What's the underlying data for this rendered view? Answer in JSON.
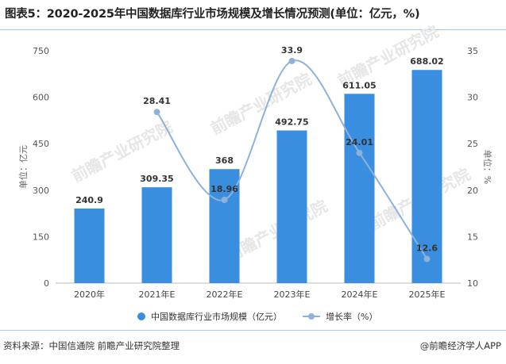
{
  "title": "图表5：2020-2025年中国数据库行业市场规模及增长情况预测(单位：亿元，%)",
  "source": "资料来源：中国信通院 前瞻产业研究院整理",
  "brand": "@前瞻经济学人APP",
  "watermark": "前瞻产业研究院",
  "colors": {
    "bar": "#3a8ee0",
    "line": "#8cb2dc",
    "rule": "#9ecbe9"
  },
  "chart_data": {
    "type": "bar",
    "categories": [
      "2020年",
      "2021年E",
      "2022年E",
      "2023年E",
      "2024年E",
      "2025年E"
    ],
    "series": [
      {
        "name": "中国数据库行业市场规模（亿元）",
        "type": "bar",
        "axis": "left",
        "values": [
          240.9,
          309.35,
          368,
          492.75,
          611.05,
          688.02
        ],
        "labels": [
          "240.9",
          "309.35",
          "368",
          "492.75",
          "611.05",
          "688.02"
        ]
      },
      {
        "name": "增长率（%）",
        "type": "line",
        "smooth": true,
        "axis": "right",
        "values": [
          null,
          28.41,
          18.96,
          33.9,
          24.01,
          12.6
        ],
        "labels": [
          "",
          "28.41",
          "18.96",
          "33.9",
          "24.01",
          "12.6"
        ]
      }
    ],
    "y_left": {
      "label": "单位：亿元",
      "ylim": [
        0,
        750
      ],
      "ticks": [
        0,
        150,
        300,
        450,
        600,
        750
      ]
    },
    "y_right": {
      "label": "单位：%",
      "ylim": [
        10,
        35
      ],
      "ticks": [
        10,
        15,
        20,
        25,
        30,
        35
      ]
    },
    "grid": false,
    "legend": "bottom-center"
  }
}
